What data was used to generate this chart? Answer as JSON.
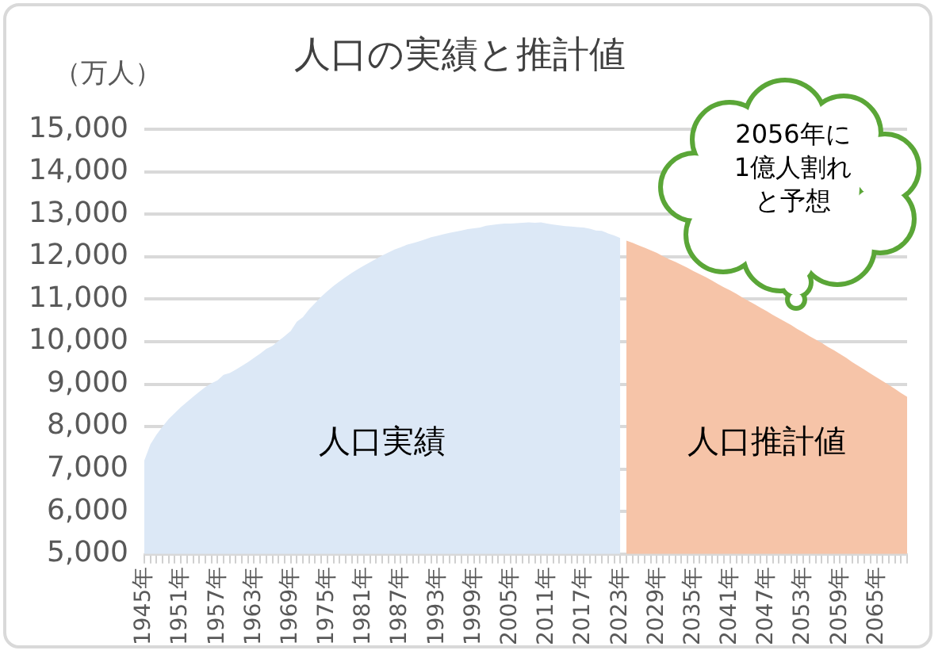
{
  "chart_data": {
    "type": "area",
    "title": "人口の実績と推計値",
    "ylabel": "（万人）",
    "categories": [
      "1945年",
      null,
      null,
      null,
      null,
      null,
      "1951年",
      null,
      null,
      null,
      null,
      null,
      "1957年",
      null,
      null,
      null,
      null,
      null,
      "1963年",
      null,
      null,
      null,
      null,
      null,
      "1969年",
      null,
      null,
      null,
      null,
      null,
      "1975年",
      null,
      null,
      null,
      null,
      null,
      "1981年",
      null,
      null,
      null,
      null,
      null,
      "1987年",
      null,
      null,
      null,
      null,
      null,
      "1993年",
      null,
      null,
      null,
      null,
      null,
      "1999年",
      null,
      null,
      null,
      null,
      null,
      "2005年",
      null,
      null,
      null,
      null,
      null,
      "2011年",
      null,
      null,
      null,
      null,
      null,
      "2017年",
      null,
      null,
      null,
      null,
      null,
      "2023年",
      null,
      null,
      null,
      null,
      null,
      "2029年",
      null,
      null,
      null,
      null,
      null,
      "2035年",
      null,
      null,
      null,
      null,
      null,
      "2041年",
      null,
      null,
      null,
      null,
      null,
      "2047年",
      null,
      null,
      null,
      null,
      null,
      "2053年",
      null,
      null,
      null,
      null,
      null,
      "2059年",
      null,
      null,
      null,
      null,
      null,
      "2065年",
      null,
      null,
      null,
      null,
      null
    ],
    "series": [
      {
        "name": "人口実績",
        "color": "#dce8f6",
        "values": [
          7200,
          7580,
          7810,
          8000,
          8180,
          8320,
          8460,
          8580,
          8700,
          8820,
          8930,
          9020,
          9090,
          9220,
          9260,
          9340,
          9430,
          9520,
          9620,
          9720,
          9830,
          9900,
          10020,
          10130,
          10250,
          10470,
          10580,
          10760,
          10910,
          11060,
          11190,
          11310,
          11420,
          11520,
          11620,
          11710,
          11790,
          11870,
          11950,
          12030,
          12100,
          12170,
          12220,
          12280,
          12320,
          12360,
          12410,
          12460,
          12490,
          12530,
          12560,
          12590,
          12620,
          12650,
          12670,
          12690,
          12730,
          12750,
          12770,
          12780,
          12780,
          12790,
          12800,
          12810,
          12800,
          12810,
          12780,
          12760,
          12740,
          12720,
          12710,
          12700,
          12690,
          12660,
          12620,
          12610,
          12550,
          12500,
          12440,
          null,
          null,
          null,
          null,
          null,
          null,
          null,
          null,
          null,
          null,
          null,
          null,
          null,
          null,
          null,
          null,
          null,
          null,
          null,
          null,
          null,
          null,
          null,
          null,
          null,
          null,
          null,
          null,
          null,
          null,
          null,
          null,
          null,
          null,
          null,
          null,
          null,
          null,
          null,
          null,
          null,
          null,
          null,
          null,
          null,
          null,
          null
        ]
      },
      {
        "name": "人口推計値",
        "color": "#f6c4a8",
        "values": [
          null,
          null,
          null,
          null,
          null,
          null,
          null,
          null,
          null,
          null,
          null,
          null,
          null,
          null,
          null,
          null,
          null,
          null,
          null,
          null,
          null,
          null,
          null,
          null,
          null,
          null,
          null,
          null,
          null,
          null,
          null,
          null,
          null,
          null,
          null,
          null,
          null,
          null,
          null,
          null,
          null,
          null,
          null,
          null,
          null,
          null,
          null,
          null,
          null,
          null,
          null,
          null,
          null,
          null,
          null,
          null,
          null,
          null,
          null,
          null,
          null,
          null,
          null,
          null,
          null,
          null,
          null,
          null,
          null,
          null,
          null,
          null,
          null,
          null,
          null,
          null,
          null,
          null,
          null,
          12380,
          12330,
          12270,
          12210,
          12150,
          12090,
          12010,
          11940,
          11880,
          11810,
          11740,
          11660,
          11590,
          11520,
          11440,
          11360,
          11280,
          11210,
          11130,
          11040,
          10960,
          10880,
          10800,
          10720,
          10630,
          10550,
          10470,
          10390,
          10300,
          10220,
          10130,
          10050,
          9970,
          9880,
          9800,
          9710,
          9620,
          9520,
          9430,
          9340,
          9250,
          9160,
          9070,
          8980,
          8890,
          8790,
          8700
        ]
      }
    ],
    "ylim": [
      5000,
      15000
    ],
    "yticks": [
      {
        "value": 5000,
        "label": "5,000"
      },
      {
        "value": 6000,
        "label": "6,000"
      },
      {
        "value": 7000,
        "label": "7,000"
      },
      {
        "value": 8000,
        "label": "8,000"
      },
      {
        "value": 9000,
        "label": "9,000"
      },
      {
        "value": 10000,
        "label": "10,000"
      },
      {
        "value": 11000,
        "label": "11,000"
      },
      {
        "value": 12000,
        "label": "12,000"
      },
      {
        "value": 13000,
        "label": "13,000"
      },
      {
        "value": 14000,
        "label": "14,000"
      },
      {
        "value": 15000,
        "label": "15,000"
      }
    ],
    "grid": "y",
    "legend": false,
    "annotations": [
      "2056年に1億人割れと予想"
    ]
  }
}
